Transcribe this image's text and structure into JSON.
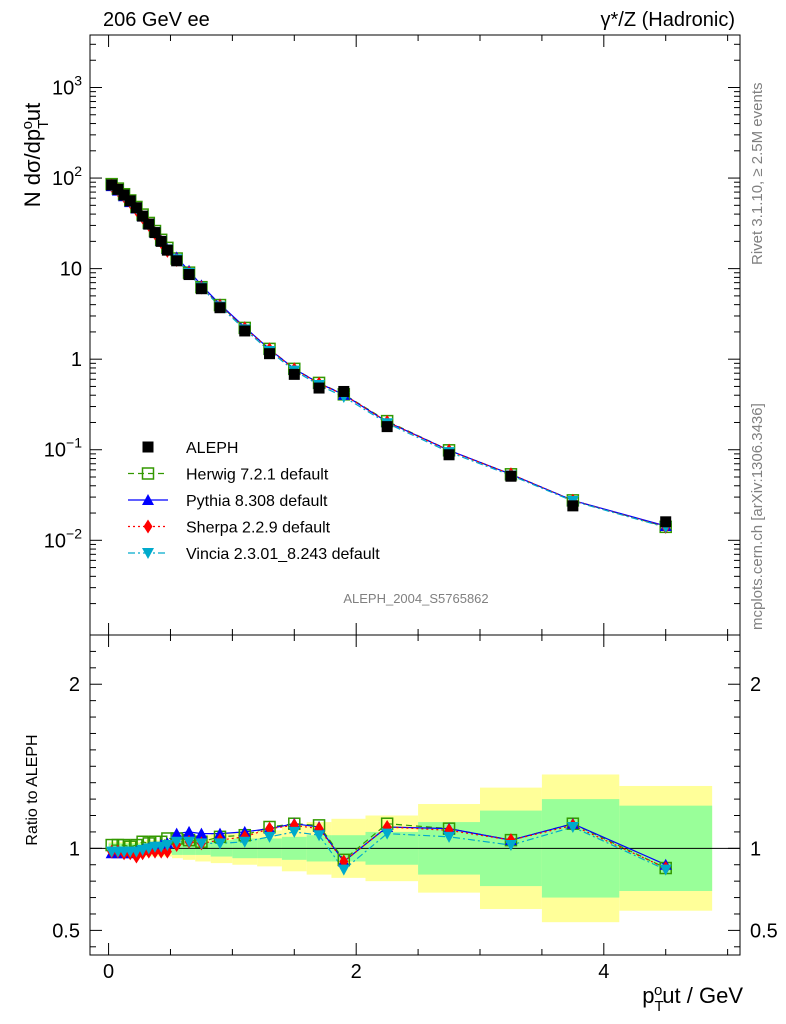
{
  "header": {
    "left": "206 GeV ee",
    "right": "γ*/Z (Hadronic)"
  },
  "side_texts": {
    "rivet": "Rivet 3.1.10, ≥ 2.5M events",
    "mcplots": "mcplots.cern.ch [arXiv:1306.3436]"
  },
  "analysis_id": "ALEPH_2004_S5765862",
  "chart_data": {
    "type": "line",
    "title": "206 GeV ee",
    "ylabel_main": {
      "base": "N dσ/dp",
      "sub": "T",
      "sup": "o",
      "tail": "ut"
    },
    "ylabel_ratio": "Ratio to ALEPH",
    "xlabel": {
      "base": "p",
      "sub": "T",
      "sup": "o",
      "tail": "ut / GeV"
    },
    "main_ylim": [
      0.0009,
      3800
    ],
    "main_yscale": "log",
    "main_yticks": [
      {
        "v": 0.01,
        "b": "10",
        "e": "−2"
      },
      {
        "v": 0.1,
        "b": "10",
        "e": "−1"
      },
      {
        "v": 1,
        "b": "1",
        "e": ""
      },
      {
        "v": 10,
        "b": "10",
        "e": ""
      },
      {
        "v": 100,
        "b": "10",
        "e": "2"
      },
      {
        "v": 1000,
        "b": "10",
        "e": "3"
      }
    ],
    "ratio_ylim": [
      0.35,
      2.3
    ],
    "ratio_yticks": [
      {
        "v": 0.5,
        "label": "0.5"
      },
      {
        "v": 1,
        "label": "1"
      },
      {
        "v": 2,
        "label": "2"
      }
    ],
    "xlim": [
      -0.15,
      5.1
    ],
    "xticks": [
      {
        "v": 0,
        "label": "0"
      },
      {
        "v": 2,
        "label": "2"
      },
      {
        "v": 4,
        "label": "4"
      }
    ],
    "legend_position": "left-lower",
    "x": [
      0.025,
      0.075,
      0.125,
      0.175,
      0.225,
      0.275,
      0.325,
      0.375,
      0.425,
      0.475,
      0.55,
      0.65,
      0.75,
      0.9,
      1.1,
      1.3,
      1.5,
      1.7,
      1.9,
      2.25,
      2.75,
      3.25,
      3.75,
      4.5
    ],
    "data": {
      "name": "ALEPH",
      "values": [
        84,
        75,
        65,
        56,
        47,
        38,
        31,
        25,
        20,
        16,
        12.2,
        8.6,
        6.0,
        3.7,
        2.05,
        1.15,
        0.68,
        0.48,
        0.44,
        0.18,
        0.088,
        0.051,
        0.024,
        0.016
      ]
    },
    "bands": {
      "yellow": [
        0.04,
        0.04,
        0.04,
        0.04,
        0.04,
        0.04,
        0.05,
        0.05,
        0.05,
        0.05,
        0.06,
        0.07,
        0.08,
        0.09,
        0.1,
        0.11,
        0.14,
        0.16,
        0.18,
        0.2,
        0.27,
        0.37,
        0.45,
        0.38
      ],
      "green": [
        0.03,
        0.03,
        0.03,
        0.03,
        0.03,
        0.03,
        0.03,
        0.03,
        0.03,
        0.03,
        0.04,
        0.04,
        0.04,
        0.05,
        0.06,
        0.06,
        0.07,
        0.08,
        0.08,
        0.1,
        0.16,
        0.23,
        0.3,
        0.26
      ]
    },
    "series": [
      {
        "name": "Herwig 7.2.1 default",
        "color": "#339900",
        "dash": "6,4",
        "marker": "open-square",
        "ratio": [
          1.02,
          1.02,
          1.02,
          1.01,
          1.02,
          1.04,
          1.03,
          1.04,
          1.04,
          1.06,
          1.06,
          1.05,
          1.04,
          1.07,
          1.08,
          1.13,
          1.15,
          1.14,
          0.93,
          1.15,
          1.12,
          1.05,
          1.15,
          0.88
        ]
      },
      {
        "name": "Pythia 8.308 default",
        "color": "#0000ff",
        "dash": "",
        "marker": "triangle-up",
        "ratio": [
          0.97,
          0.97,
          0.97,
          0.97,
          0.98,
          0.99,
          1.0,
          1.01,
          1.02,
          1.03,
          1.09,
          1.1,
          1.09,
          1.09,
          1.1,
          1.12,
          1.15,
          1.13,
          0.92,
          1.13,
          1.12,
          1.05,
          1.15,
          0.9
        ]
      },
      {
        "name": "Sherpa 2.2.9 default",
        "color": "#ff0000",
        "dash": "2,3",
        "marker": "diamond",
        "ratio": [
          0.98,
          0.98,
          0.97,
          0.97,
          0.95,
          0.97,
          0.98,
          0.98,
          0.98,
          0.98,
          1.02,
          1.04,
          1.03,
          1.05,
          1.07,
          1.12,
          1.14,
          1.12,
          0.92,
          1.13,
          1.11,
          1.05,
          1.14,
          0.88
        ]
      },
      {
        "name": "Vincia 2.3.01_8.243 default",
        "color": "#00aacc",
        "dash": "7,3,2,3",
        "marker": "triangle-down",
        "ratio": [
          0.98,
          0.98,
          0.98,
          0.98,
          0.98,
          0.99,
          1.0,
          1.01,
          1.01,
          1.02,
          1.04,
          1.04,
          1.03,
          1.03,
          1.04,
          1.07,
          1.1,
          1.08,
          0.87,
          1.09,
          1.07,
          1.02,
          1.13,
          0.87
        ]
      }
    ]
  }
}
